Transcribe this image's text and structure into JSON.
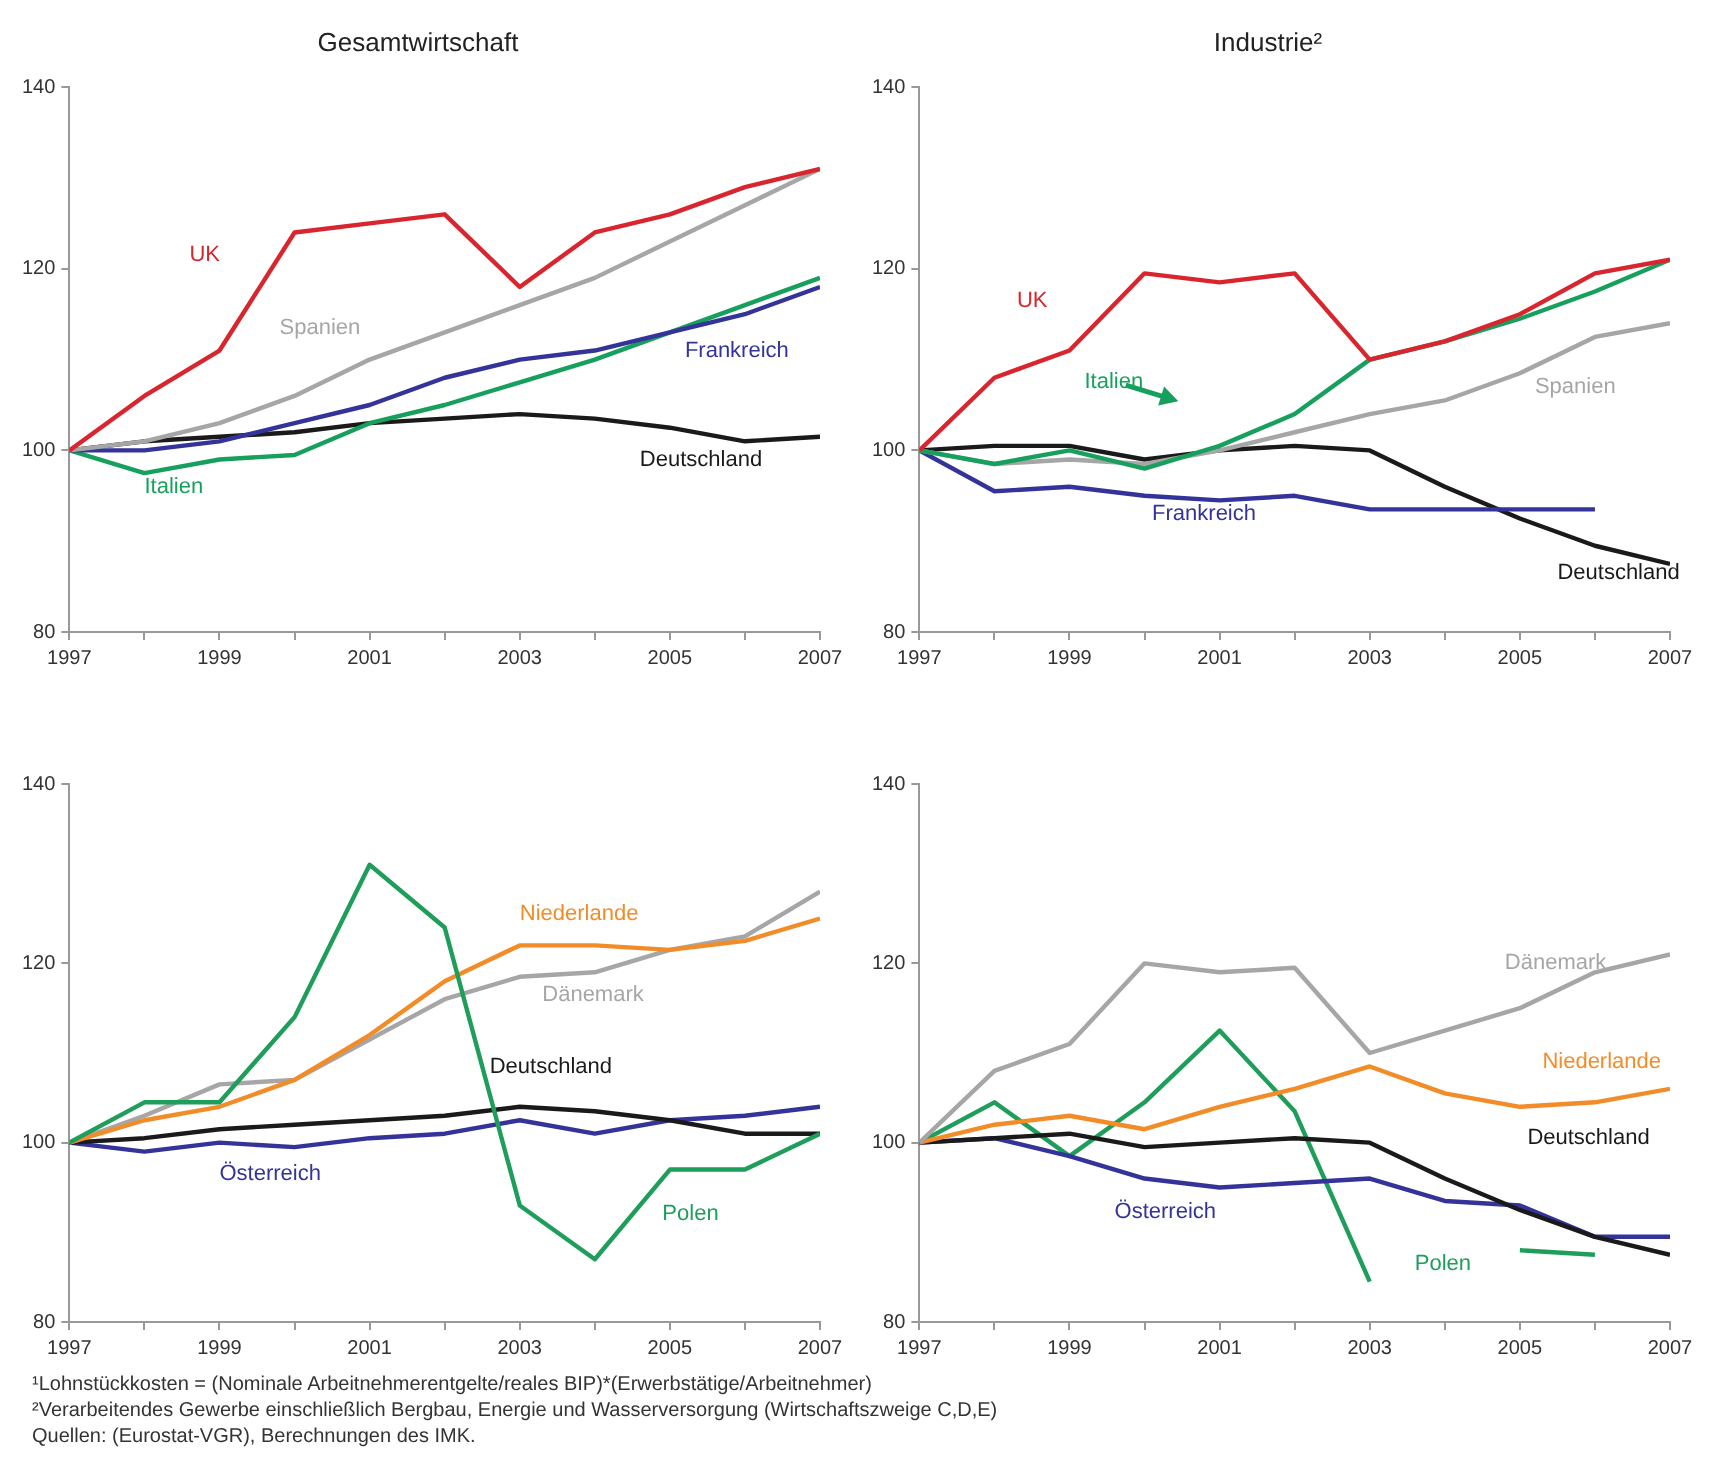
{
  "chart_data": [
    {
      "type": "line",
      "title": "Gesamtwirtschaft",
      "marker": "none",
      "x": [
        1997,
        1998,
        1999,
        2000,
        2001,
        2002,
        2003,
        2004,
        2005,
        2006,
        2007
      ],
      "xlim": [
        1997,
        2007
      ],
      "xticks": [
        1997,
        {
          "value": 1998,
          "label": null
        },
        1999,
        {
          "value": 2000,
          "label": null
        },
        2001,
        {
          "value": 2002,
          "label": null
        },
        2003,
        {
          "value": 2004,
          "label": null
        },
        2005,
        {
          "value": 2006,
          "label": null
        },
        2007
      ],
      "ylim": [
        80,
        140
      ],
      "yticks": [
        80,
        100,
        120,
        140
      ],
      "series": [
        {
          "name": "UK",
          "color": "#d9262e",
          "values": [
            100,
            106,
            111,
            124,
            125,
            126,
            118,
            124,
            126,
            129,
            131
          ]
        },
        {
          "name": "Spanien",
          "color": "#a6a6a6",
          "values": [
            100,
            101,
            103,
            106,
            110,
            113,
            116,
            119,
            123,
            127,
            131
          ]
        },
        {
          "name": "Frankreich",
          "color": "#333399",
          "values": [
            100,
            100,
            101,
            103,
            105,
            108,
            110,
            111,
            113,
            115,
            118
          ]
        },
        {
          "name": "Italien",
          "color": "#17a05d",
          "values": [
            100,
            97.5,
            99,
            99.5,
            103,
            105,
            107.5,
            110,
            113,
            116,
            119
          ]
        },
        {
          "name": "Deutschland",
          "color": "#1a1a1a",
          "values": [
            100,
            101,
            101.5,
            102,
            103,
            103.5,
            104,
            103.5,
            102.5,
            101,
            101.5
          ]
        }
      ]
    },
    {
      "type": "line",
      "title": "Industrie²",
      "marker": "none",
      "x": [
        1997,
        1998,
        1999,
        2000,
        2001,
        2002,
        2003,
        2004,
        2005,
        2006,
        2007
      ],
      "xlim": [
        1997,
        2007
      ],
      "xticks": [
        1997,
        {
          "value": 1998,
          "label": null
        },
        1999,
        {
          "value": 2000,
          "label": null
        },
        2001,
        {
          "value": 2002,
          "label": null
        },
        2003,
        {
          "value": 2004,
          "label": null
        },
        2005,
        {
          "value": 2006,
          "label": null
        },
        2007
      ],
      "ylim": [
        80,
        140
      ],
      "yticks": [
        80,
        100,
        120,
        140
      ],
      "series": [
        {
          "name": "UK",
          "color": "#d9262e",
          "values": [
            100,
            108,
            111,
            119.5,
            118.5,
            119.5,
            110,
            112,
            115,
            119.5,
            121
          ]
        },
        {
          "name": "Italien",
          "color": "#17a05d",
          "values": [
            100,
            98.5,
            100,
            98,
            100.5,
            104,
            110,
            112,
            114.5,
            117.5,
            121
          ]
        },
        {
          "name": "Spanien",
          "color": "#a6a6a6",
          "values": [
            100,
            98.5,
            99,
            98.5,
            100,
            102,
            104,
            105.5,
            108.5,
            112.5,
            114
          ]
        },
        {
          "name": "Frankreich",
          "color": "#333399",
          "values": [
            100,
            95.5,
            96,
            95,
            94.5,
            95,
            93.5,
            93.5,
            93.5,
            93.5,
            null
          ]
        },
        {
          "name": "Deutschland",
          "color": "#1a1a1a",
          "values": [
            100,
            100.5,
            100.5,
            99,
            100,
            100.5,
            100,
            96,
            92.5,
            89.5,
            87.5
          ]
        }
      ]
    },
    {
      "type": "line",
      "marker": "none",
      "x": [
        1997,
        1998,
        1999,
        2000,
        2001,
        2002,
        2003,
        2004,
        2005,
        2006,
        2007
      ],
      "xlim": [
        1997,
        2007
      ],
      "xticks": [
        1997,
        {
          "value": 1998,
          "label": null
        },
        1999,
        {
          "value": 2000,
          "label": null
        },
        2001,
        {
          "value": 2002,
          "label": null
        },
        2003,
        {
          "value": 2004,
          "label": null
        },
        2005,
        {
          "value": 2006,
          "label": null
        },
        2007
      ],
      "ylim": [
        80,
        140
      ],
      "yticks": [
        80,
        100,
        120,
        140
      ],
      "series": [
        {
          "name": "Polen",
          "color": "#1f9d5a",
          "values": [
            100,
            104.5,
            104.5,
            114,
            131,
            124,
            93,
            87,
            97,
            97,
            101
          ]
        },
        {
          "name": "Niederlande",
          "color": "#f28c28",
          "values": [
            100,
            102.5,
            104,
            107,
            112,
            118,
            122,
            122,
            121.5,
            122.5,
            125
          ]
        },
        {
          "name": "Dänemark",
          "color": "#a6a6a6",
          "values": [
            100,
            103,
            106.5,
            107,
            111.5,
            116,
            118.5,
            119,
            121.5,
            123,
            128
          ]
        },
        {
          "name": "Deutschland",
          "color": "#1a1a1a",
          "values": [
            100,
            100.5,
            101.5,
            102,
            102.5,
            103,
            104,
            103.5,
            102.5,
            101,
            101
          ]
        },
        {
          "name": "Österreich",
          "color": "#333399",
          "values": [
            100,
            99,
            100,
            99.5,
            100.5,
            101,
            102.5,
            101,
            102.5,
            103,
            104
          ]
        }
      ]
    },
    {
      "type": "line",
      "marker": "none",
      "x": [
        1997,
        1998,
        1999,
        2000,
        2001,
        2002,
        2003,
        2004,
        2005,
        2006,
        2007
      ],
      "xlim": [
        1997,
        2007
      ],
      "xticks": [
        1997,
        {
          "value": 1998,
          "label": null
        },
        1999,
        {
          "value": 2000,
          "label": null
        },
        2001,
        {
          "value": 2002,
          "label": null
        },
        2003,
        {
          "value": 2004,
          "label": null
        },
        2005,
        {
          "value": 2006,
          "label": null
        },
        2007
      ],
      "ylim": [
        80,
        140
      ],
      "yticks": [
        80,
        100,
        120,
        140
      ],
      "series": [
        {
          "name": "Dänemark",
          "color": "#a6a6a6",
          "values": [
            100,
            108,
            111,
            120,
            119,
            119.5,
            110,
            112.5,
            115,
            119,
            121
          ]
        },
        {
          "name": "Niederlande",
          "color": "#f28c28",
          "values": [
            100,
            102,
            103,
            101.5,
            104,
            106,
            108.5,
            105.5,
            104,
            104.5,
            106
          ]
        },
        {
          "name": "Deutschland",
          "color": "#1a1a1a",
          "values": [
            100,
            100.5,
            101,
            99.5,
            100,
            100.5,
            100,
            96,
            92.5,
            89.5,
            87.5
          ]
        },
        {
          "name": "Österreich",
          "color": "#333399",
          "values": [
            100,
            100.5,
            98.5,
            96,
            95,
            95.5,
            96,
            93.5,
            93,
            89.5,
            89.5
          ]
        },
        {
          "name": "Polen",
          "color": "#1f9d5a",
          "values": [
            100,
            104.5,
            98.5,
            104.5,
            112.5,
            103.5,
            84.5,
            null,
            88,
            87.5,
            null
          ]
        }
      ],
      "annotations": [
        "¹Lohnstückkosten = (Nominale Arbeitnehmerentgelte/reales BIP)*(Erwerbstätige/Arbeitnehmer)",
        "²Verarbeitendes Gewerbe einschließlich Bergbau, Energie und Wasserversorgung (Wirtschaftszweige C,D,E)",
        "Quellen: (Eurostat-VGR), Berechnungen des IMK."
      ]
    }
  ]
}
